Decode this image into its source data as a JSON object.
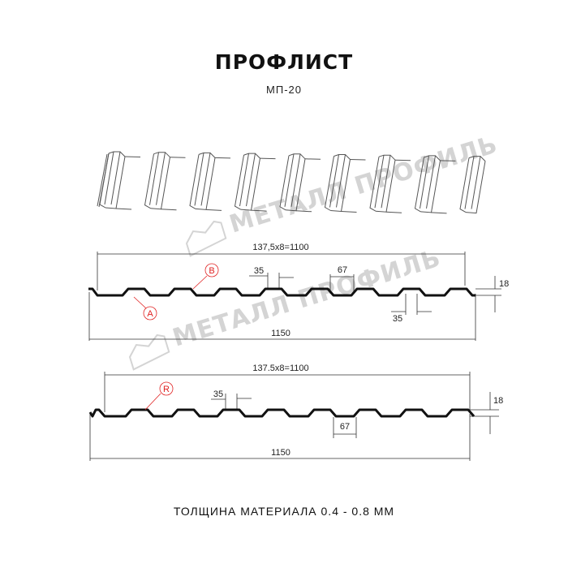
{
  "title": "ПРОФЛИСТ",
  "subtitle": "МП-20",
  "footer": "ТОЛЩИНА МАТЕРИАЛА 0.4 - 0.8 ММ",
  "watermark": "МЕТАЛЛ ПРОФИЛЬ",
  "colors": {
    "profile": "#111111",
    "dimension": "#333333",
    "marker": "#e02020",
    "watermark": "#d4d4d4"
  },
  "profile_a": {
    "pitch_label": "137,5x8=1100",
    "width_label": "1150",
    "top_rib_label": "35",
    "bottom_rib_label": "35",
    "rib_gap_label": "67",
    "height_label": "18",
    "marker_a": "A",
    "marker_b": "B"
  },
  "profile_r": {
    "pitch_label": "137.5x8=1100",
    "width_label": "1150",
    "top_rib_label": "35",
    "rib_gap_label": "67",
    "height_label": "18",
    "marker_r": "R"
  }
}
